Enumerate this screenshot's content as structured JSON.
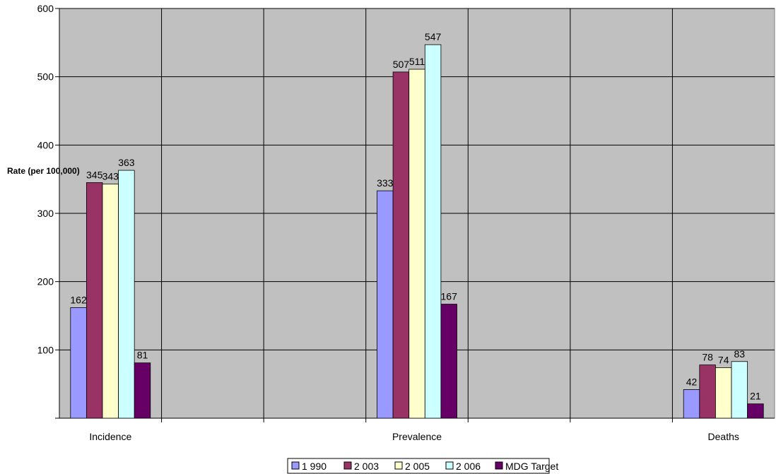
{
  "chart_data": {
    "type": "bar",
    "title": "",
    "xlabel": "",
    "ylabel": "Rate (per 100,000)",
    "ylim": [
      0,
      600
    ],
    "yticks": [
      100,
      200,
      300,
      400,
      500,
      600
    ],
    "grid": true,
    "legend_position": "bottom",
    "categories": [
      "Incidence",
      "Prevalence",
      "Deaths"
    ],
    "series": [
      {
        "name": "1 990",
        "color": "#9999ff",
        "values": [
          162,
          333,
          42
        ]
      },
      {
        "name": "2 003",
        "color": "#993366",
        "values": [
          345,
          507,
          78
        ]
      },
      {
        "name": "2 005",
        "color": "#ffffcc",
        "values": [
          343,
          511,
          74
        ]
      },
      {
        "name": "2 006",
        "color": "#ccffff",
        "values": [
          363,
          547,
          83
        ]
      },
      {
        "name": "MDG Target",
        "color": "#660066",
        "values": [
          81,
          167,
          21
        ]
      }
    ],
    "data_labels": [
      [
        "162",
        "333",
        "42"
      ],
      [
        "345",
        "507",
        "78"
      ],
      [
        "343",
        "511",
        "74"
      ],
      [
        "363",
        "547",
        "83"
      ],
      [
        "81",
        "167",
        "21"
      ]
    ],
    "plot_background": "#c0c0c0"
  }
}
